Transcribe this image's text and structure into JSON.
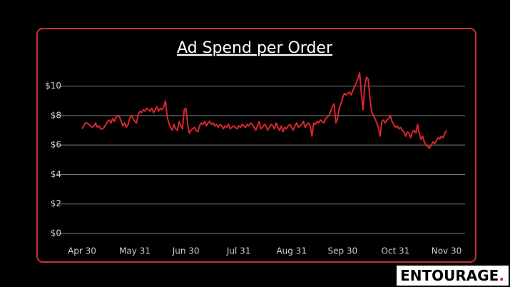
{
  "chart_data": {
    "type": "line",
    "title": "Ad Spend per Order",
    "categories": [
      "Apr 30",
      null,
      null,
      null,
      null,
      null,
      null,
      null,
      null,
      null,
      null,
      null,
      null,
      null,
      null,
      null,
      null,
      null,
      null,
      null,
      null,
      null,
      null,
      null,
      null,
      null,
      null,
      null,
      null,
      null,
      null,
      "May 31",
      null,
      null,
      null,
      null,
      null,
      null,
      null,
      null,
      null,
      null,
      null,
      null,
      null,
      null,
      null,
      null,
      null,
      null,
      null,
      null,
      null,
      null,
      null,
      null,
      null,
      null,
      null,
      null,
      null,
      "Jun 30",
      null,
      null,
      null,
      null,
      null,
      null,
      null,
      null,
      null,
      null,
      null,
      null,
      null,
      null,
      null,
      null,
      null,
      null,
      null,
      null,
      null,
      null,
      null,
      null,
      null,
      null,
      null,
      null,
      null,
      null,
      "Jul 31",
      null,
      null,
      null,
      null,
      null,
      null,
      null,
      null,
      null,
      null,
      null,
      null,
      null,
      null,
      null,
      null,
      null,
      null,
      null,
      null,
      null,
      null,
      null,
      null,
      null,
      null,
      null,
      null,
      null,
      null,
      "Aug 31",
      null,
      null,
      null,
      null,
      null,
      null,
      null,
      null,
      null,
      null,
      null,
      null,
      null,
      null,
      null,
      null,
      null,
      null,
      null,
      null,
      null,
      null,
      null,
      null,
      null,
      null,
      null,
      null,
      null,
      "Sep 30",
      null,
      null,
      null,
      null,
      null,
      null,
      null,
      null,
      null,
      null,
      null,
      null,
      null,
      null,
      null,
      null,
      null,
      null,
      null,
      null,
      null,
      null,
      null,
      null,
      null,
      null,
      null,
      null,
      null,
      null,
      "Oct 31",
      null,
      null,
      null,
      null,
      null,
      null,
      null,
      null,
      null,
      null,
      null,
      null,
      null,
      null,
      null,
      null,
      null,
      null,
      null,
      null,
      null,
      null,
      null,
      null,
      null,
      null,
      null,
      null,
      null,
      "Nov 30"
    ],
    "values": [
      7.1,
      7.3,
      7.5,
      7.5,
      7.4,
      7.3,
      7.2,
      7.3,
      7.5,
      7.2,
      7.3,
      7.1,
      7.1,
      7.2,
      7.4,
      7.6,
      7.7,
      7.5,
      7.8,
      7.6,
      7.9,
      8.0,
      7.9,
      7.6,
      7.3,
      7.5,
      7.2,
      7.4,
      7.8,
      8.0,
      7.8,
      7.6,
      7.5,
      8.1,
      8.3,
      8.2,
      8.4,
      8.3,
      8.5,
      8.4,
      8.3,
      8.5,
      8.2,
      8.4,
      8.6,
      8.3,
      8.5,
      8.4,
      8.6,
      9.0,
      7.9,
      7.5,
      7.2,
      7.0,
      7.4,
      7.1,
      7.0,
      7.6,
      7.3,
      7.1,
      8.4,
      8.5,
      7.4,
      6.8,
      7.0,
      7.1,
      7.2,
      7.0,
      6.9,
      7.3,
      7.5,
      7.4,
      7.6,
      7.3,
      7.5,
      7.6,
      7.4,
      7.5,
      7.3,
      7.4,
      7.2,
      7.4,
      7.3,
      7.1,
      7.3,
      7.2,
      7.4,
      7.1,
      7.2,
      7.3,
      7.2,
      7.1,
      7.3,
      7.2,
      7.4,
      7.3,
      7.2,
      7.4,
      7.3,
      7.5,
      7.4,
      7.2,
      7.0,
      7.3,
      7.6,
      7.1,
      7.2,
      7.4,
      7.3,
      7.0,
      7.2,
      7.4,
      7.3,
      7.1,
      7.5,
      7.2,
      7.0,
      7.3,
      6.9,
      7.2,
      7.1,
      7.3,
      7.4,
      7.2,
      7.0,
      7.3,
      7.5,
      7.2,
      7.3,
      7.4,
      7.6,
      7.2,
      7.4,
      7.5,
      7.3,
      6.6,
      7.5,
      7.4,
      7.6,
      7.5,
      7.7,
      7.6,
      7.5,
      7.8,
      7.9,
      8.0,
      8.3,
      8.6,
      8.8,
      7.5,
      7.8,
      8.5,
      8.8,
      9.2,
      9.5,
      9.4,
      9.5,
      9.6,
      9.4,
      9.7,
      10.0,
      10.2,
      10.5,
      10.9,
      9.5,
      8.4,
      10.0,
      10.6,
      10.5,
      9.2,
      8.3,
      8.0,
      7.8,
      7.5,
      7.2,
      6.6,
      7.6,
      7.7,
      7.5,
      7.7,
      7.8,
      8.0,
      7.6,
      7.4,
      7.2,
      7.3,
      7.1,
      7.2,
      7.0,
      6.9,
      6.6,
      6.9,
      6.8,
      6.5,
      6.9,
      7.0,
      6.8,
      7.4,
      6.8,
      6.4,
      6.6,
      6.2,
      6.0,
      5.9,
      5.8,
      6.0,
      6.2,
      6.1,
      6.3,
      6.5,
      6.4,
      6.6,
      6.5,
      6.8,
      7.0
    ],
    "color": "#d9262e",
    "ylim": [
      0,
      11
    ],
    "yticks": [
      {
        "value": 0,
        "label": "$0"
      },
      {
        "value": 2,
        "label": "$2"
      },
      {
        "value": 4,
        "label": "$4"
      },
      {
        "value": 6,
        "label": "$6"
      },
      {
        "value": 8,
        "label": "$8"
      },
      {
        "value": 10,
        "label": "$10"
      }
    ],
    "grid": true
  },
  "logo": {
    "name": "ENTOURAGE",
    "mark": "."
  }
}
